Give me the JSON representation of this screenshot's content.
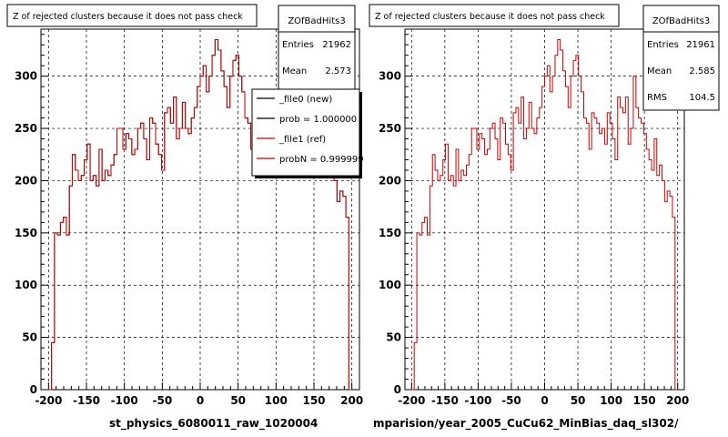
{
  "chart_data": [
    {
      "type": "histogram",
      "title": "Z of rejected clusters  because it does not pass check",
      "xlabel": "st_physics_6080011_raw_1020004",
      "xlim": [
        -210,
        210
      ],
      "ylim": [
        0,
        345
      ],
      "xticks": [
        -200,
        -150,
        -100,
        -50,
        0,
        50,
        100,
        150,
        200
      ],
      "yticks": [
        0,
        50,
        100,
        150,
        200,
        250,
        300
      ],
      "grid": true,
      "stats": {
        "name": "ZOfBadHits3",
        "entries_label": "Entries",
        "entries": "21962",
        "mean_label": "Mean",
        "mean": "2.573"
      },
      "legend": {
        "placement": "top-right",
        "entries": [
          {
            "label": "_file0 (new)",
            "color": "#000000"
          },
          {
            "label": "prob = 1.000000",
            "color": "#000000"
          },
          {
            "label": "_file1 (ref)",
            "color": "#cc0000"
          },
          {
            "label": "probN = 0.999999",
            "color": "#cc0000"
          }
        ]
      },
      "bin_edges": [
        -200,
        200
      ],
      "series": [
        {
          "name": "_file0 (new)",
          "color": "#000000",
          "values": [
            0,
            45,
            150,
            148,
            160,
            165,
            148,
            195,
            225,
            210,
            200,
            205,
            220,
            235,
            200,
            205,
            195,
            230,
            200,
            210,
            205,
            215,
            225,
            250,
            250,
            230,
            245,
            240,
            225,
            230,
            250,
            255,
            240,
            220,
            260,
            255,
            235,
            225,
            210,
            265,
            270,
            255,
            280,
            240,
            250,
            275,
            250,
            245,
            260,
            270,
            290,
            300,
            310,
            285,
            300,
            320,
            335,
            325,
            305,
            290,
            270,
            300,
            315,
            320,
            300,
            285,
            260,
            255,
            230,
            265,
            260,
            255,
            245,
            250,
            235,
            265,
            255,
            240,
            220,
            280,
            270,
            265,
            280,
            235,
            250,
            300,
            270,
            260,
            255,
            245,
            230,
            220,
            210,
            240,
            205,
            215,
            200,
            180,
            190,
            185,
            165,
            0
          ]
        },
        {
          "name": "_file1 (ref)",
          "color": "#cc0000",
          "values": [
            0,
            45,
            150,
            148,
            160,
            165,
            148,
            195,
            225,
            210,
            200,
            205,
            220,
            235,
            200,
            205,
            195,
            230,
            200,
            210,
            205,
            215,
            225,
            250,
            250,
            230,
            245,
            240,
            225,
            230,
            250,
            255,
            240,
            220,
            260,
            255,
            235,
            225,
            210,
            265,
            270,
            255,
            280,
            240,
            250,
            275,
            250,
            245,
            260,
            270,
            290,
            300,
            310,
            285,
            300,
            320,
            335,
            325,
            305,
            290,
            270,
            300,
            315,
            320,
            300,
            285,
            260,
            255,
            230,
            265,
            260,
            255,
            245,
            250,
            235,
            265,
            255,
            240,
            220,
            280,
            270,
            265,
            280,
            235,
            250,
            300,
            270,
            260,
            255,
            245,
            230,
            220,
            210,
            240,
            205,
            215,
            200,
            180,
            190,
            185,
            165,
            0
          ]
        }
      ]
    },
    {
      "type": "histogram",
      "title": "Z of rejected clusters  because it does not pass check",
      "xlabel": "mparision/year_2005_CuCu62_MinBias_daq_sl302/",
      "xlim": [
        -210,
        210
      ],
      "ylim": [
        0,
        345
      ],
      "xticks": [
        -200,
        -150,
        -100,
        -50,
        0,
        50,
        100,
        150,
        200
      ],
      "yticks": [
        0,
        50,
        100,
        150,
        200,
        250,
        300
      ],
      "grid": true,
      "stats": {
        "name": "ZOfBadHits3",
        "entries_label": "Entries",
        "entries": "21961",
        "mean_label": "Mean",
        "mean": "2.585",
        "rms_label": "RMS",
        "rms": "104.5"
      },
      "bin_edges": [
        -200,
        200
      ],
      "series": [
        {
          "name": "_file1 (ref)",
          "color": "#cc0000",
          "values": [
            0,
            45,
            150,
            148,
            160,
            165,
            148,
            195,
            225,
            210,
            200,
            205,
            220,
            235,
            200,
            205,
            195,
            230,
            200,
            210,
            205,
            215,
            225,
            250,
            250,
            230,
            245,
            240,
            225,
            230,
            250,
            255,
            240,
            220,
            260,
            255,
            235,
            225,
            210,
            265,
            270,
            255,
            280,
            240,
            250,
            275,
            250,
            245,
            260,
            270,
            290,
            300,
            310,
            285,
            300,
            320,
            335,
            325,
            305,
            290,
            270,
            300,
            315,
            320,
            300,
            285,
            260,
            255,
            230,
            265,
            260,
            255,
            245,
            250,
            235,
            265,
            255,
            240,
            220,
            280,
            270,
            265,
            280,
            235,
            250,
            300,
            270,
            260,
            255,
            245,
            230,
            220,
            210,
            240,
            205,
            215,
            200,
            180,
            190,
            185,
            165,
            0
          ]
        }
      ]
    }
  ]
}
